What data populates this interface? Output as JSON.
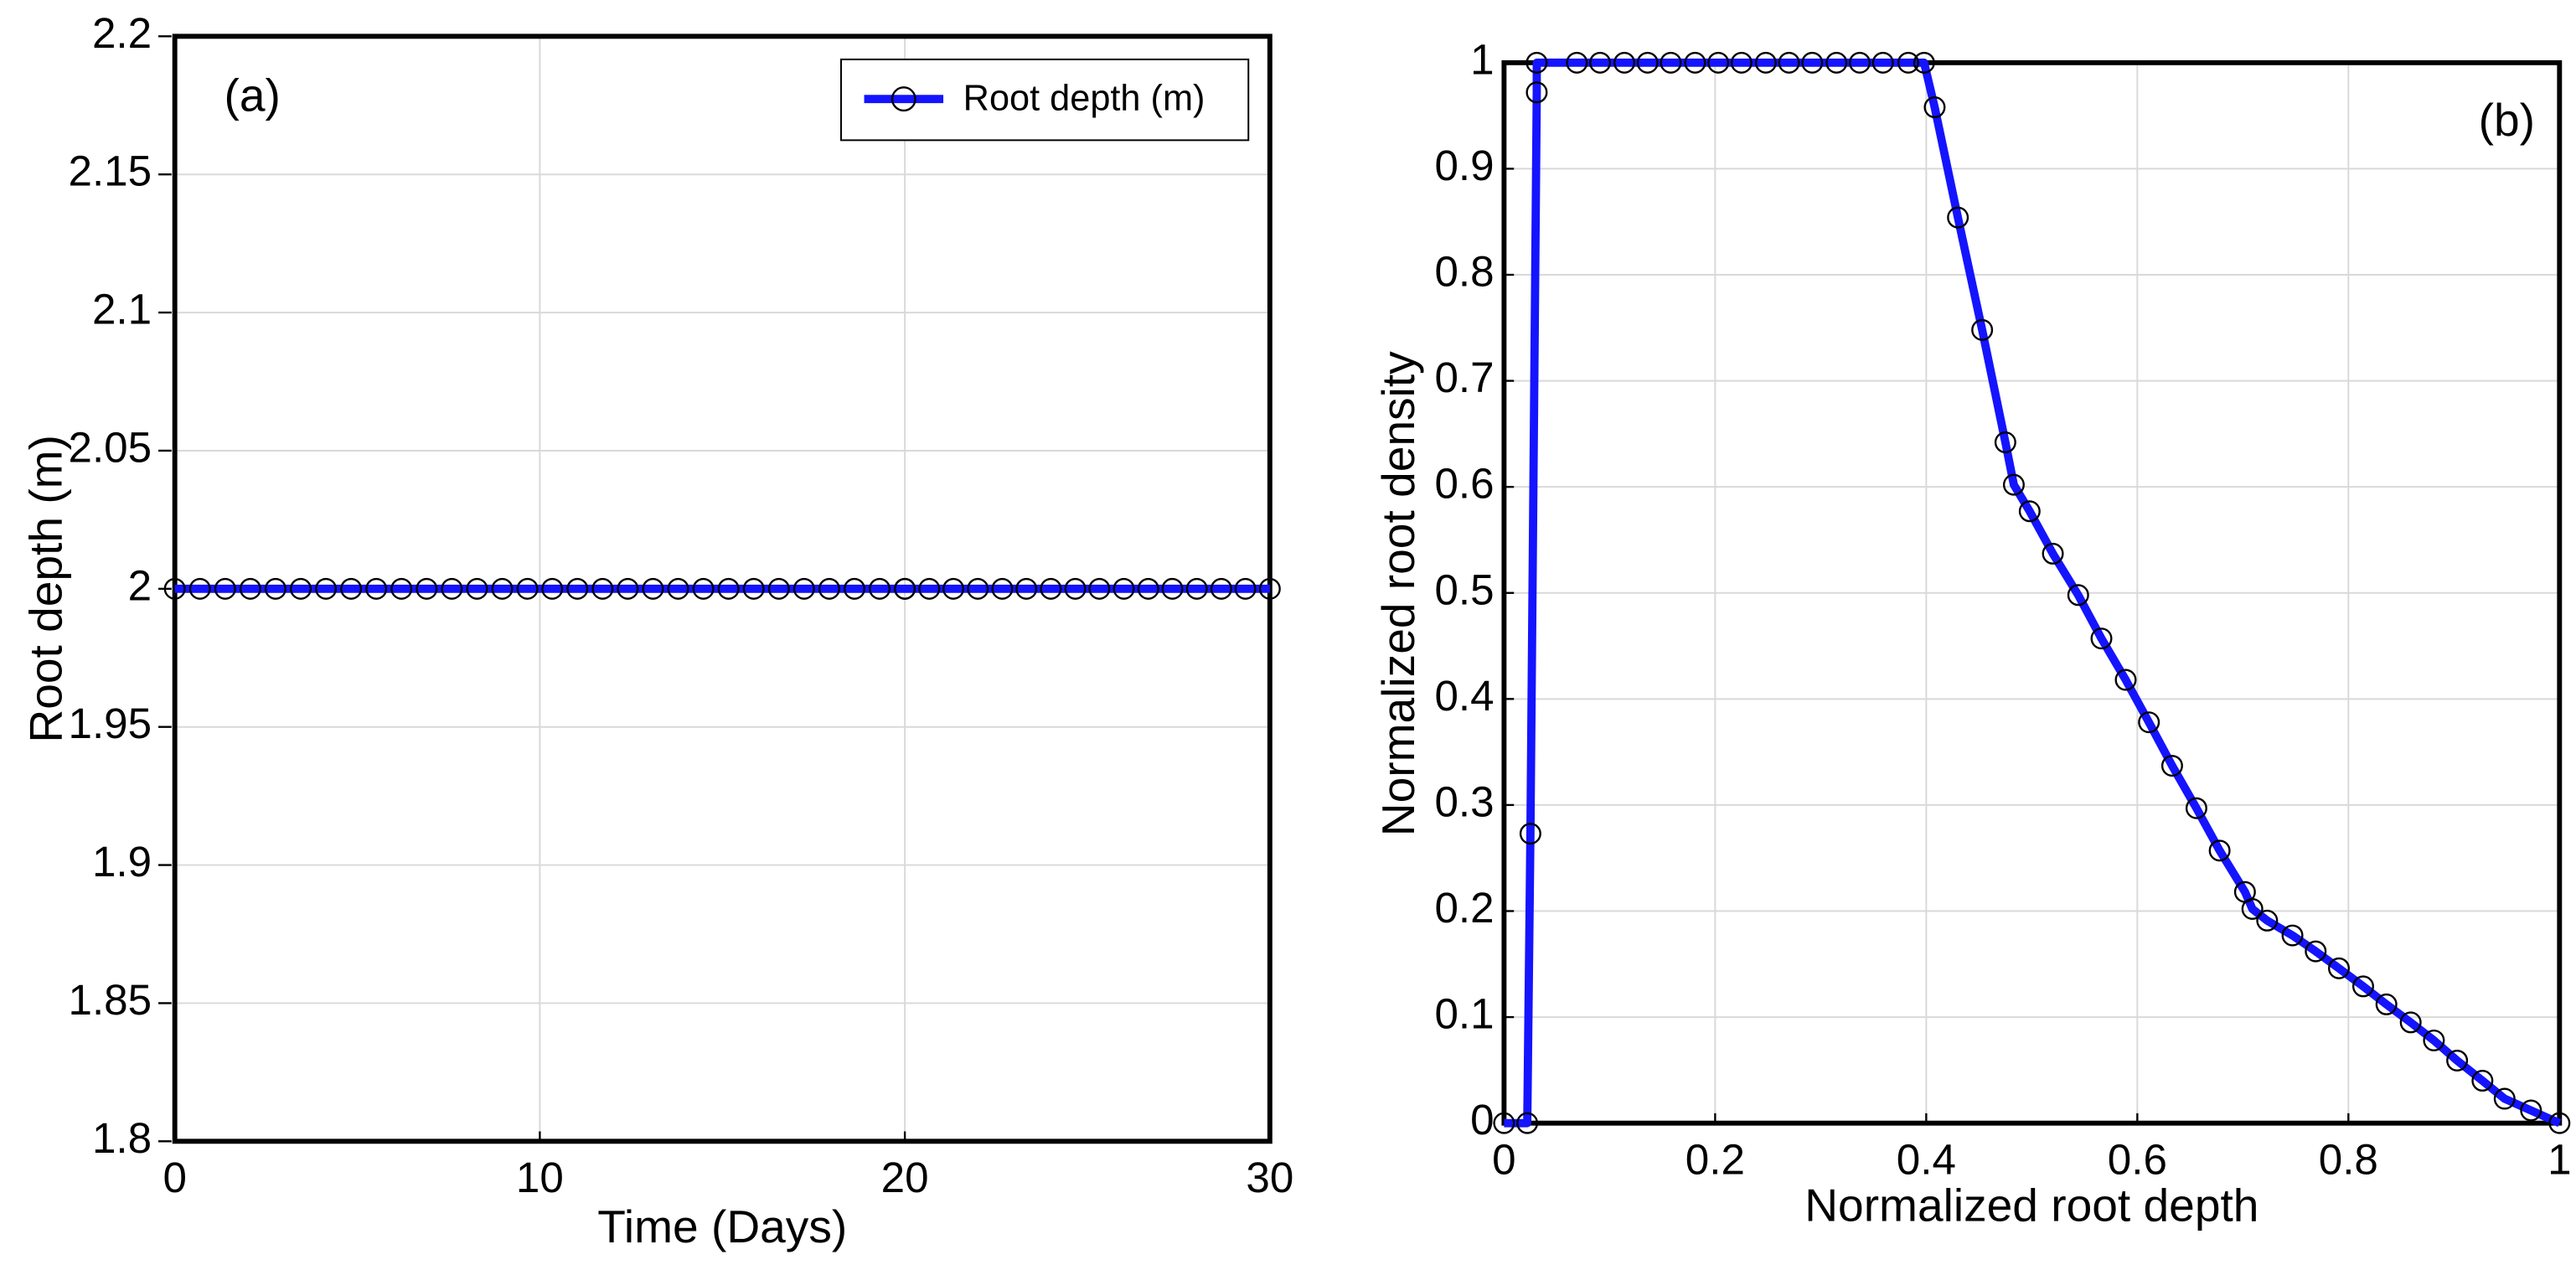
{
  "chart_data": [
    {
      "type": "line",
      "annotation": "(a)",
      "x_label": "Time (Days)",
      "y_label": "Root depth (m)",
      "xlim": [
        0,
        30
      ],
      "xticks": [
        0,
        10,
        20,
        30
      ],
      "ylim": [
        1.8,
        2.2
      ],
      "yticks": [
        1.8,
        1.85,
        1.9,
        1.95,
        2,
        2.05,
        2.1,
        2.15,
        2.2
      ],
      "grid": true,
      "legend": "upper right",
      "x": [
        0,
        0.69,
        1.38,
        2.07,
        2.76,
        3.45,
        4.14,
        4.83,
        5.52,
        6.21,
        6.9,
        7.59,
        8.28,
        8.97,
        9.66,
        10.34,
        11.03,
        11.72,
        12.41,
        13.1,
        13.79,
        14.48,
        15.17,
        15.86,
        16.55,
        17.24,
        17.93,
        18.62,
        19.31,
        20,
        20,
        20.67,
        21.33,
        22,
        22.67,
        23.33,
        24,
        24.67,
        25.33,
        26,
        26.67,
        27.33,
        28,
        28.67,
        29.33,
        30
      ],
      "series": [
        {
          "name": "Root depth (m)",
          "color": "#1414ff",
          "values": [
            2,
            2,
            2,
            2,
            2,
            2,
            2,
            2,
            2,
            2,
            2,
            2,
            2,
            2,
            2,
            2,
            2,
            2,
            2,
            2,
            2,
            2,
            2,
            2,
            2,
            2,
            2,
            2,
            2,
            2,
            2,
            2,
            2,
            2,
            2,
            2,
            2,
            2,
            2,
            2,
            2,
            2,
            2,
            2,
            2,
            2
          ]
        }
      ]
    },
    {
      "type": "line",
      "annotation": "(b)",
      "x_label": "Normalized root depth",
      "y_label": "Normalized root density",
      "xlim": [
        0,
        1
      ],
      "xticks": [
        0,
        0.2,
        0.4,
        0.6,
        0.8,
        1
      ],
      "ylim": [
        0,
        1
      ],
      "yticks": [
        0,
        0.1,
        0.2,
        0.3,
        0.4,
        0.5,
        0.6,
        0.7,
        0.8,
        0.9,
        1
      ],
      "grid": true,
      "x": [
        0,
        0.022,
        0.025,
        0.031,
        0.031,
        0.069,
        0.091,
        0.114,
        0.136,
        0.158,
        0.181,
        0.203,
        0.225,
        0.248,
        0.27,
        0.292,
        0.315,
        0.337,
        0.359,
        0.383,
        0.398,
        0.408,
        0.43,
        0.453,
        0.475,
        0.483,
        0.498,
        0.52,
        0.544,
        0.566,
        0.589,
        0.611,
        0.633,
        0.656,
        0.678,
        0.702,
        0.709,
        0.723,
        0.747,
        0.769,
        0.791,
        0.814,
        0.836,
        0.859,
        0.881,
        0.903,
        0.927,
        0.948,
        0.973,
        1
      ],
      "series": [
        {
          "color": "#1414ff",
          "values": [
            0,
            0,
            0.273,
            0.972,
            1,
            1,
            1,
            1,
            1,
            1,
            1,
            1,
            1,
            1,
            1,
            1,
            1,
            1,
            1,
            1,
            1,
            0.958,
            0.854,
            0.748,
            0.642,
            0.602,
            0.577,
            0.537,
            0.498,
            0.457,
            0.418,
            0.378,
            0.337,
            0.297,
            0.257,
            0.218,
            0.202,
            0.191,
            0.177,
            0.162,
            0.146,
            0.129,
            0.112,
            0.095,
            0.078,
            0.059,
            0.04,
            0.023,
            0.012,
            0
          ]
        }
      ]
    }
  ]
}
